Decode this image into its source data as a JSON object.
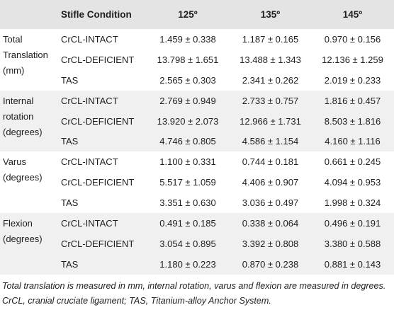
{
  "table": {
    "headers": [
      "",
      "Stifle Condition",
      "125º",
      "135º",
      "145º"
    ],
    "groups": [
      {
        "parameter": "Total Translation (mm)",
        "rows": [
          {
            "condition": "CrCL-INTACT",
            "v125": "1.459 ± 0.338",
            "v135": "1.187 ± 0.165",
            "v145": "0.970 ± 0.156"
          },
          {
            "condition": "CrCL-DEFICIENT",
            "v125": "13.798 ± 1.651",
            "v135": "13.488 ± 1.343",
            "v145": "12.136 ± 1.259"
          },
          {
            "condition": "TAS",
            "v125": "2.565 ± 0.303",
            "v135": "2.341 ± 0.262",
            "v145": "2.019 ± 0.233"
          }
        ]
      },
      {
        "parameter": "Internal rotation (degrees)",
        "rows": [
          {
            "condition": "CrCL-INTACT",
            "v125": "2.769 ± 0.949",
            "v135": "2.733 ± 0.757",
            "v145": "1.816 ± 0.457"
          },
          {
            "condition": "CrCL-DEFICIENT",
            "v125": "13.920 ± 2.073",
            "v135": "12.966 ± 1.731",
            "v145": "8.503 ± 1.816"
          },
          {
            "condition": "TAS",
            "v125": "4.746 ± 0.805",
            "v135": "4.586 ± 1.154",
            "v145": "4.160 ± 1.116"
          }
        ]
      },
      {
        "parameter": "Varus (degrees)",
        "rows": [
          {
            "condition": "CrCL-INTACT",
            "v125": "1.100 ± 0.331",
            "v135": "0.744 ± 0.181",
            "v145": "0.661 ± 0.245"
          },
          {
            "condition": "CrCL-DEFICIENT",
            "v125": "5.517 ± 1.059",
            "v135": "4.406 ± 0.907",
            "v145": "4.094 ± 0.953"
          },
          {
            "condition": "TAS",
            "v125": "3.351 ± 0.630",
            "v135": "3.036 ± 0.497",
            "v145": "1.998 ± 0.324"
          }
        ]
      },
      {
        "parameter": "Flexion (degrees)",
        "rows": [
          {
            "condition": "CrCL-INTACT",
            "v125": "0.491 ± 0.185",
            "v135": "0.338 ± 0.064",
            "v145": "0.496 ± 0.191"
          },
          {
            "condition": "CrCL-DEFICIENT",
            "v125": "3.054 ± 0.895",
            "v135": "3.392 ± 0.808",
            "v145": "3.380 ± 0.588"
          },
          {
            "condition": "TAS",
            "v125": "1.180 ± 0.223",
            "v135": "0.870 ± 0.238",
            "v145": "0.881 ± 0.143"
          }
        ]
      }
    ]
  },
  "footnote": "Total translation is measured in mm, internal rotation, varus and flexion are measured in degrees. CrCL, cranial cruciate ligament; TAS, Titanium-alloy Anchor System.",
  "colors": {
    "header_bg": "#e4e4e4",
    "shade_bg": "#f0f0f0",
    "text": "#1e1e1e"
  }
}
